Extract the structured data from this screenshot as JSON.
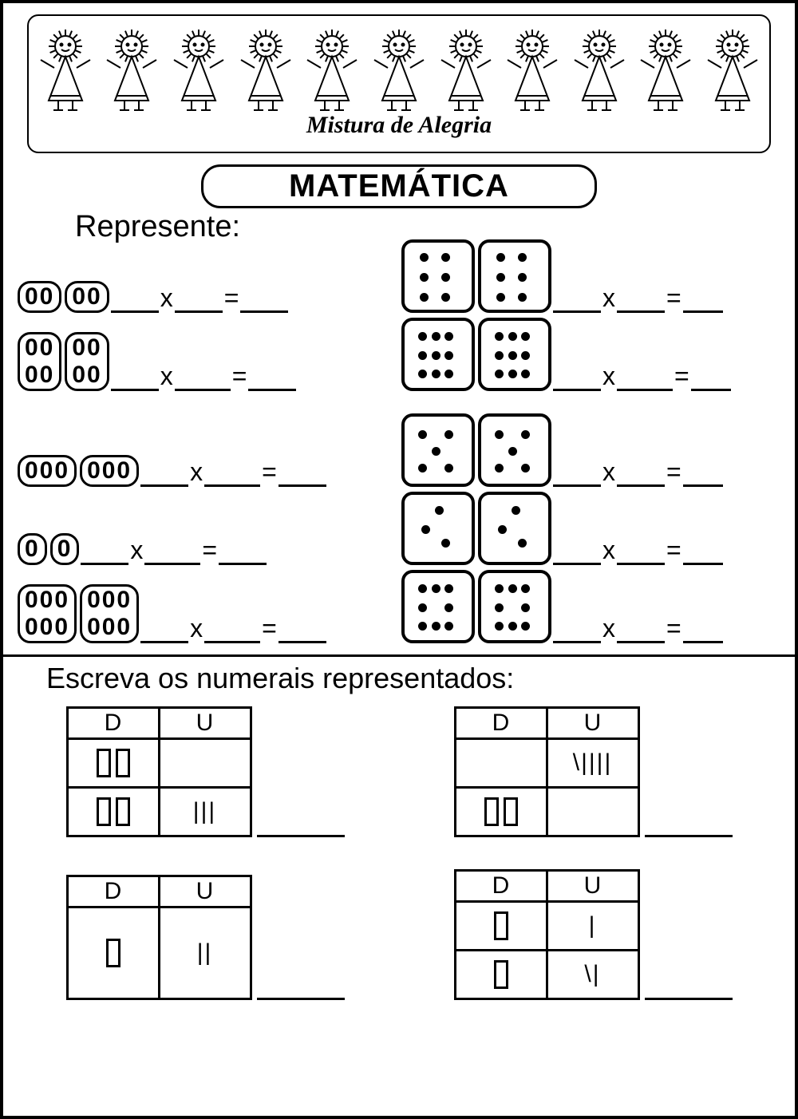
{
  "banner": {
    "subtitle": "Mistura de Alegria",
    "doll_count": 11
  },
  "title": "MATEMÁTICA",
  "section1": {
    "instruction": "Represente:",
    "left": [
      {
        "tiles": [
          [
            "00"
          ],
          [
            "00"
          ]
        ]
      },
      {
        "tiles": [
          [
            "00",
            "00"
          ],
          [
            "00",
            "00"
          ]
        ]
      },
      {
        "tiles": [
          [
            "000"
          ],
          [
            "000"
          ]
        ]
      },
      {
        "tiles": [
          [
            "0"
          ],
          [
            "0"
          ]
        ]
      },
      {
        "tiles": [
          [
            "000",
            "000"
          ],
          [
            "000",
            "000"
          ]
        ]
      }
    ],
    "right_dice": [
      [
        6,
        6
      ],
      [
        9,
        9
      ],
      [
        5,
        5
      ],
      [
        3,
        3
      ],
      [
        8,
        8
      ]
    ],
    "op_times": "x",
    "op_eq": "="
  },
  "section2": {
    "instruction": "Escreva os numerais representados:",
    "header_d": "D",
    "header_u": "U",
    "tables": [
      {
        "rows": [
          {
            "d": "▯▯",
            "u": ""
          },
          {
            "d": "▯▯",
            "u": "|||"
          }
        ],
        "tall": false
      },
      {
        "rows": [
          {
            "d": "",
            "u": "\\||||"
          },
          {
            "d": "▯▯",
            "u": ""
          }
        ],
        "tall": false
      },
      {
        "rows": [
          {
            "d": "▯",
            "u": "||"
          }
        ],
        "tall": true
      },
      {
        "rows": [
          {
            "d": "▯",
            "u": "|"
          },
          {
            "d": "▯",
            "u": "\\|"
          }
        ],
        "tall": false
      }
    ]
  }
}
